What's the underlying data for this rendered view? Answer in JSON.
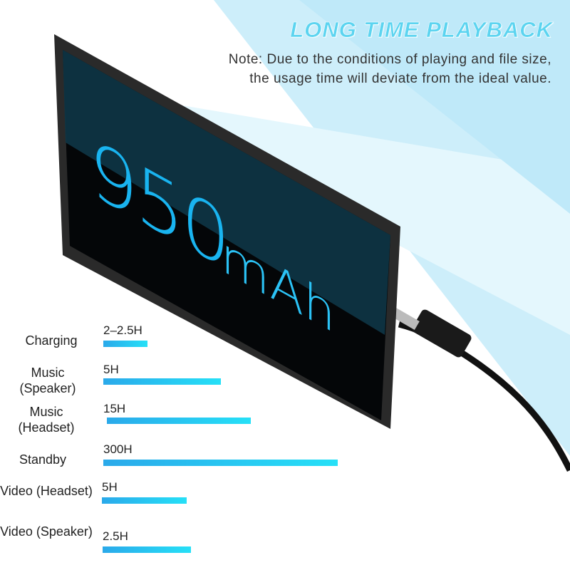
{
  "header": {
    "title": "LONG TIME PLAYBACK",
    "note": "Note: Due to the conditions of playing and file size, the usage time will deviate from the ideal value."
  },
  "device": {
    "capacity": "950",
    "unit": "mAh"
  },
  "colors": {
    "accent": "#26c4f2",
    "background": "#d8f2fb"
  },
  "stats": [
    {
      "label": "Charging",
      "value": "2–2.5H"
    },
    {
      "label": "Music (Speaker)",
      "value": "5H"
    },
    {
      "label": "Music (Headset)",
      "value": "15H"
    },
    {
      "label": "Standby",
      "value": "300H"
    },
    {
      "label": "Video (Headset)",
      "value": "5H"
    },
    {
      "label": "Video (Speaker)",
      "value": "2.5H"
    }
  ]
}
